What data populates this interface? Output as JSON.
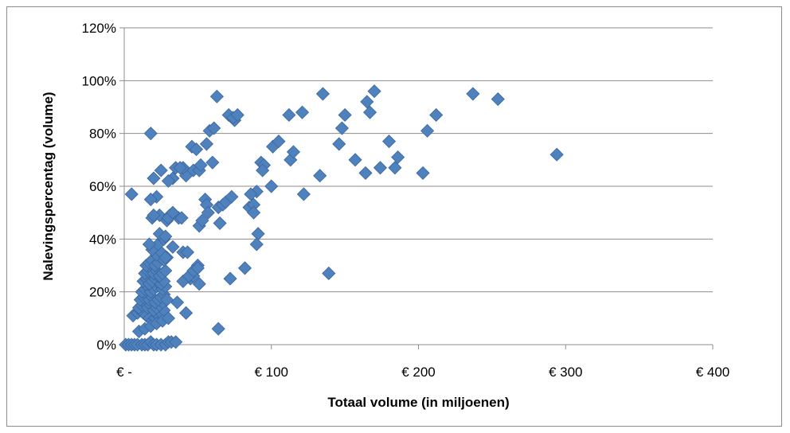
{
  "chart_data": {
    "type": "scatter",
    "title": "",
    "xlabel": "Totaal volume (in miljoenen)",
    "ylabel": "Nalevingspercentag (volume)",
    "xlim": [
      0,
      400
    ],
    "ylim": [
      0,
      120
    ],
    "grid": "horizontal",
    "marker": "diamond",
    "color": "#4F81BD",
    "x_ticks": [
      {
        "value": 0,
        "label": "€ -"
      },
      {
        "value": 100,
        "label": "€ 100"
      },
      {
        "value": 200,
        "label": "€ 200"
      },
      {
        "value": 300,
        "label": "€ 300"
      },
      {
        "value": 400,
        "label": "€ 400"
      }
    ],
    "y_ticks": [
      {
        "value": 0,
        "label": "0%"
      },
      {
        "value": 20,
        "label": "20%"
      },
      {
        "value": 40,
        "label": "40%"
      },
      {
        "value": 60,
        "label": "60%"
      },
      {
        "value": 80,
        "label": "80%"
      },
      {
        "value": 100,
        "label": "100%"
      },
      {
        "value": 120,
        "label": "120%"
      }
    ],
    "x": [
      1,
      3,
      5,
      7,
      9,
      12,
      14,
      16,
      18,
      20,
      22,
      25,
      28,
      30,
      32,
      35,
      6,
      9,
      11,
      13,
      15,
      17,
      19,
      21,
      23,
      25,
      27,
      10,
      12,
      14,
      16,
      18,
      20,
      22,
      24,
      26,
      11,
      13,
      15,
      17,
      19,
      21,
      23,
      25,
      27,
      29,
      12,
      14,
      16,
      18,
      20,
      22,
      24,
      26,
      28,
      13,
      15,
      17,
      19,
      21,
      23,
      25,
      27,
      14,
      16,
      18,
      20,
      22,
      24,
      26,
      28,
      15,
      17,
      19,
      21,
      23,
      25,
      27,
      29,
      10,
      14,
      18,
      22,
      26,
      30,
      22,
      25,
      28,
      19,
      23,
      27,
      17,
      24,
      28,
      33,
      37,
      40,
      45,
      50,
      5,
      19,
      18,
      22,
      24,
      29,
      31,
      39,
      43,
      47,
      51,
      42,
      40,
      47,
      51,
      52,
      46,
      49,
      56,
      58,
      61,
      35,
      33,
      30,
      20,
      25,
      30,
      33,
      38,
      42,
      36,
      20,
      18,
      40,
      44,
      47,
      50,
      55,
      56,
      51,
      53,
      57,
      60,
      64,
      67,
      65,
      69,
      73,
      63,
      71,
      75,
      74,
      77,
      85,
      88,
      88,
      90,
      91,
      93,
      95,
      72,
      82,
      90,
      101,
      105,
      112,
      113,
      115,
      121,
      122,
      94,
      86,
      100,
      133,
      135,
      139,
      146,
      148,
      150,
      157,
      165,
      164,
      167,
      170,
      174,
      180,
      184,
      186,
      203,
      206,
      212,
      237,
      254,
      294,
      64
    ],
    "y": [
      0,
      0,
      0,
      0,
      0,
      0,
      0,
      0,
      1,
      0,
      0,
      0,
      0,
      1,
      1,
      1,
      11,
      12,
      13,
      12,
      11,
      10,
      9,
      10,
      11,
      12,
      13,
      14,
      15,
      16,
      14,
      15,
      13,
      14,
      15,
      16,
      17,
      18,
      19,
      17,
      18,
      16,
      17,
      18,
      19,
      17,
      20,
      21,
      22,
      20,
      21,
      22,
      23,
      21,
      22,
      24,
      25,
      23,
      24,
      25,
      26,
      23,
      24,
      27,
      28,
      29,
      27,
      28,
      26,
      27,
      28,
      30,
      31,
      32,
      30,
      31,
      33,
      32,
      33,
      5,
      6,
      7,
      8,
      9,
      10,
      34,
      35,
      33,
      36,
      38,
      40,
      38,
      42,
      41,
      37,
      48,
      35,
      25,
      30,
      57,
      48,
      80,
      56,
      49,
      47,
      49,
      48,
      35,
      26,
      23,
      64,
      67,
      66,
      66,
      68,
      75,
      74,
      76,
      81,
      82,
      67,
      63,
      62,
      63,
      66,
      48,
      50,
      67,
      12,
      16,
      49,
      55,
      24,
      26,
      28,
      29,
      55,
      53,
      45,
      47,
      50,
      69,
      52,
      53,
      46,
      54,
      56,
      94,
      87,
      85,
      86,
      87,
      52,
      53,
      50,
      58,
      42,
      69,
      68,
      25,
      29,
      38,
      75,
      77,
      87,
      70,
      73,
      88,
      57,
      66,
      57,
      60,
      64,
      95,
      27,
      76,
      82,
      87,
      70,
      92,
      65,
      88,
      96,
      67,
      77,
      67,
      71,
      65,
      81,
      87,
      95,
      93,
      72,
      6
    ]
  }
}
